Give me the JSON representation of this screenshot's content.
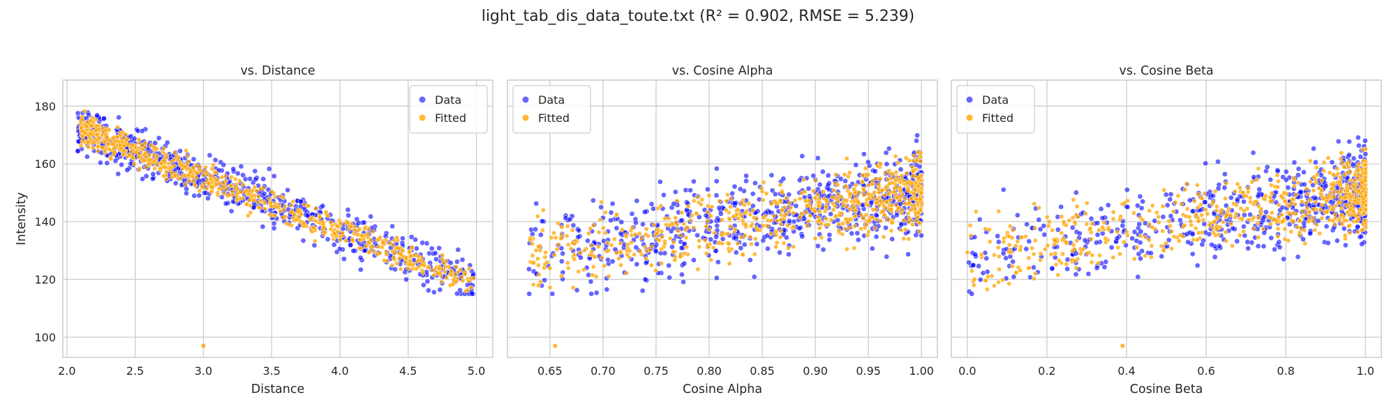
{
  "figure_title": "light_tab_dis_data_toute.txt (R² = 0.902, RMSE = 5.239)",
  "colors": {
    "data": "#0000ff",
    "fitted": "#ffa500",
    "grid": "#cccccc",
    "frame": "#cccccc",
    "plot_bg": "#ffffff",
    "text": "#262626"
  },
  "chart_data": [
    {
      "type": "scatter",
      "title": "vs. Distance",
      "xlabel": "Distance",
      "ylabel": "Intensity",
      "xlim": [
        1.97,
        5.12
      ],
      "ylim": [
        93,
        189
      ],
      "xticks": [
        2.0,
        2.5,
        3.0,
        3.5,
        4.0,
        4.5,
        5.0
      ],
      "xtick_labels": [
        "2.0",
        "2.5",
        "3.0",
        "3.5",
        "4.0",
        "4.5",
        "5.0"
      ],
      "yticks": [
        100,
        120,
        140,
        160,
        180
      ],
      "ytick_labels": [
        "100",
        "120",
        "140",
        "160",
        "180"
      ],
      "grid": true,
      "legend": {
        "placement": "top-right",
        "entries": [
          "Data",
          "Fitted"
        ]
      },
      "series": [
        {
          "name": "Data",
          "x_range": [
            2.08,
            4.98
          ],
          "y_range": [
            119,
            184
          ],
          "trend": "decreasing",
          "n": 700,
          "seed": 11
        },
        {
          "name": "Fitted",
          "x_range": [
            2.1,
            4.98
          ],
          "y_range": [
            97,
            176
          ],
          "trend": "decreasing",
          "n": 700,
          "seed": 12
        }
      ]
    },
    {
      "type": "scatter",
      "title": "vs. Cosine Alpha",
      "xlabel": "Cosine Alpha",
      "ylabel": "",
      "xlim": [
        0.61,
        1.015
      ],
      "ylim": [
        93,
        189
      ],
      "xticks": [
        0.65,
        0.7,
        0.75,
        0.8,
        0.85,
        0.9,
        0.95,
        1.0
      ],
      "xtick_labels": [
        "0.65",
        "0.70",
        "0.75",
        "0.80",
        "0.85",
        "0.90",
        "0.95",
        "1.00"
      ],
      "yticks": [
        100,
        120,
        140,
        160,
        180
      ],
      "ytick_labels": [
        "",
        "",
        "",
        "",
        ""
      ],
      "grid": true,
      "legend": {
        "placement": "top-left",
        "entries": [
          "Data",
          "Fitted"
        ]
      },
      "series": [
        {
          "name": "Data",
          "x_range": [
            0.63,
            1.0
          ],
          "y_range": [
            119,
            184
          ],
          "trend": "increasing",
          "n": 700,
          "seed": 21
        },
        {
          "name": "Fitted",
          "x_range": [
            0.63,
            1.0
          ],
          "y_range": [
            97,
            176
          ],
          "trend": "increasing",
          "n": 700,
          "seed": 22
        }
      ]
    },
    {
      "type": "scatter",
      "title": "vs. Cosine Beta",
      "xlabel": "Cosine Beta",
      "ylabel": "",
      "xlim": [
        -0.04,
        1.04
      ],
      "ylim": [
        93,
        189
      ],
      "xticks": [
        0.0,
        0.2,
        0.4,
        0.6,
        0.8,
        1.0
      ],
      "xtick_labels": [
        "0.0",
        "0.2",
        "0.4",
        "0.6",
        "0.8",
        "1.0"
      ],
      "yticks": [
        100,
        120,
        140,
        160,
        180
      ],
      "ytick_labels": [
        "",
        "",
        "",
        "",
        ""
      ],
      "grid": true,
      "legend": {
        "placement": "top-left",
        "entries": [
          "Data",
          "Fitted"
        ]
      },
      "series": [
        {
          "name": "Data",
          "x_range": [
            0.0,
            1.0
          ],
          "y_range": [
            119,
            184
          ],
          "trend": "increasing",
          "n": 700,
          "seed": 31
        },
        {
          "name": "Fitted",
          "x_range": [
            0.0,
            1.0
          ],
          "y_range": [
            97,
            176
          ],
          "trend": "increasing",
          "n": 700,
          "seed": 32
        }
      ]
    }
  ]
}
